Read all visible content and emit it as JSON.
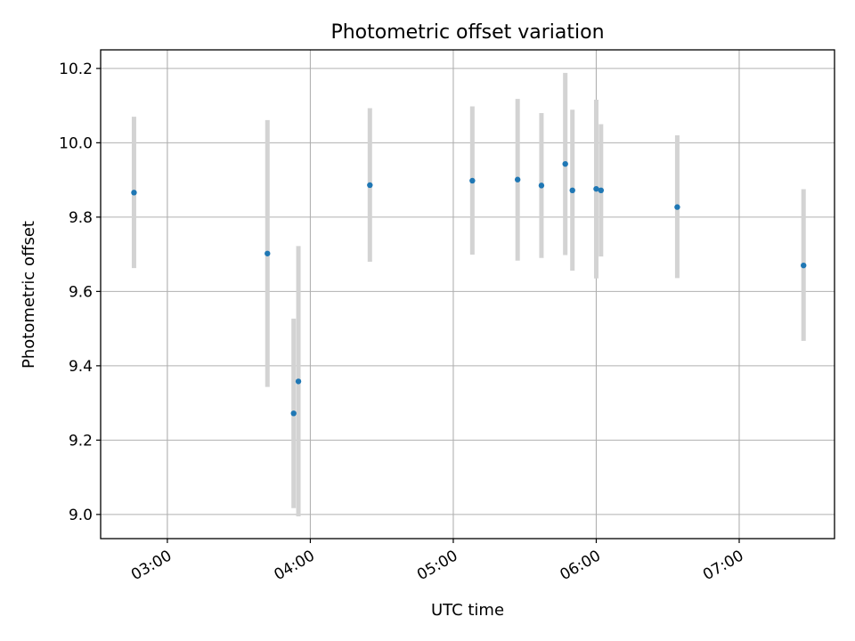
{
  "chart_data": {
    "type": "scatter",
    "title": "Photometric offset variation",
    "xlabel": "UTC time",
    "ylabel": "Photometric offset",
    "x_axis": "time (HH:MM, UTC)",
    "xlim": [
      "02:32",
      "07:40"
    ],
    "ylim": [
      8.935,
      10.25
    ],
    "xticks": [
      "03:00",
      "04:00",
      "05:00",
      "06:00",
      "07:00"
    ],
    "yticks": [
      "9.0",
      "9.2",
      "9.4",
      "9.6",
      "9.8",
      "10.0",
      "10.2"
    ],
    "grid": true,
    "series": [
      {
        "marker_color": "#1f77b4",
        "errorbar_color": "#d3d3d3",
        "points": [
          {
            "x": "02:46",
            "y": 9.866,
            "ylow": 9.663,
            "yhigh": 10.07
          },
          {
            "x": "03:42",
            "y": 9.702,
            "ylow": 9.343,
            "yhigh": 10.061
          },
          {
            "x": "03:53",
            "y": 9.272,
            "ylow": 9.017,
            "yhigh": 9.527
          },
          {
            "x": "03:55",
            "y": 9.358,
            "ylow": 8.995,
            "yhigh": 9.722
          },
          {
            "x": "04:25",
            "y": 9.886,
            "ylow": 9.68,
            "yhigh": 10.093
          },
          {
            "x": "05:08",
            "y": 9.898,
            "ylow": 9.699,
            "yhigh": 10.098
          },
          {
            "x": "05:27",
            "y": 9.901,
            "ylow": 9.683,
            "yhigh": 10.118
          },
          {
            "x": "05:37",
            "y": 9.885,
            "ylow": 9.69,
            "yhigh": 10.08
          },
          {
            "x": "05:47",
            "y": 9.943,
            "ylow": 9.698,
            "yhigh": 10.188
          },
          {
            "x": "05:50",
            "y": 9.872,
            "ylow": 9.656,
            "yhigh": 10.089
          },
          {
            "x": "06:00",
            "y": 9.876,
            "ylow": 9.635,
            "yhigh": 10.116
          },
          {
            "x": "06:02",
            "y": 9.872,
            "ylow": 9.694,
            "yhigh": 10.05
          },
          {
            "x": "06:34",
            "y": 9.827,
            "ylow": 9.636,
            "yhigh": 10.02
          },
          {
            "x": "07:27",
            "y": 9.67,
            "ylow": 9.467,
            "yhigh": 9.875
          }
        ]
      }
    ]
  }
}
